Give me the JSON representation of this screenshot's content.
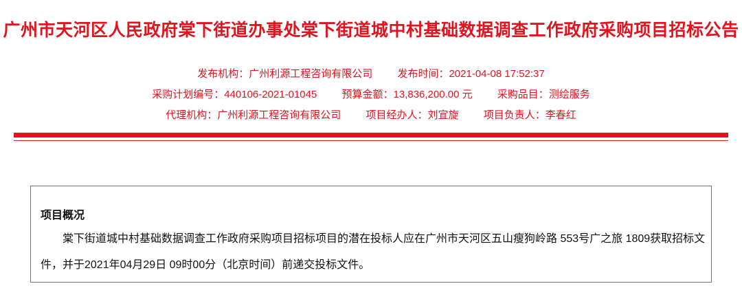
{
  "title": "广州市天河区人民政府棠下街道办事处棠下街道城中村基础数据调查工作政府采购项目招标公告",
  "meta": {
    "publisher_label": "发布机构：",
    "publisher": "广州利源工程咨询有限公司",
    "publish_time_label": "发布时间：",
    "publish_time": "2021-04-08 17:52:37",
    "plan_no_label": "采购计划编号：",
    "plan_no": "440106-2021-01045",
    "budget_label": "预算金额：",
    "budget": "13,836,200.00 元",
    "category_label": "采购品目：",
    "category": "测绘服务",
    "agent_label": "代理机构：",
    "agent": "广州利源工程咨询有限公司",
    "handler_label": "项目经办人：",
    "handler": "刘宜旋",
    "leader_label": "项目负责人：",
    "leader": "李春红"
  },
  "overview": {
    "heading": "项目概况",
    "text": "棠下街道城中村基础数据调查工作政府采购项目招标项目的潜在投标人应在广州市天河区五山瘦狗岭路 553号广之旅 1809获取招标文件，并于2021年04月29日 09时00分（北京时间）前递交投标文件。"
  },
  "colors": {
    "accent": "#e0141e",
    "text": "#111111",
    "border": "#777777"
  }
}
